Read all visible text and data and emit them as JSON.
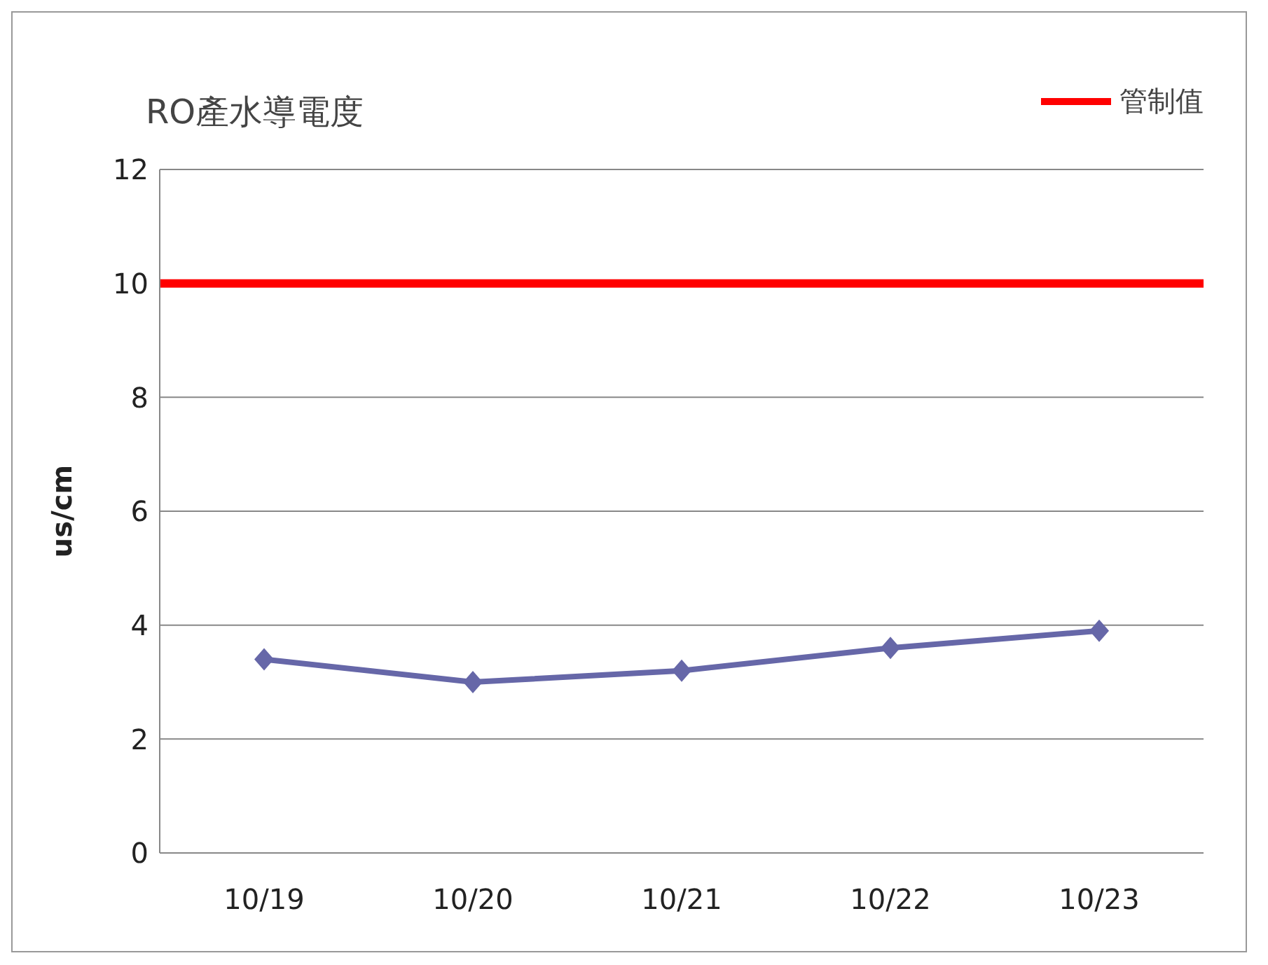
{
  "chart_data": {
    "type": "line",
    "title": "RO產水導電度",
    "ylabel": "us/cm",
    "categories": [
      "10/19",
      "10/20",
      "10/21",
      "10/22",
      "10/23"
    ],
    "series": [
      {
        "color": "#6667a8",
        "values": [
          3.4,
          3.0,
          3.2,
          3.6,
          3.9
        ]
      }
    ],
    "ylim": [
      0,
      12
    ],
    "yticks": [
      0,
      2,
      4,
      6,
      8,
      10,
      12
    ],
    "grid": "y",
    "marker": "diamond",
    "legend": "top right",
    "ref_lines": [
      {
        "axis": "y",
        "value": 10,
        "label": "管制值",
        "color": "#ff0000"
      }
    ]
  }
}
